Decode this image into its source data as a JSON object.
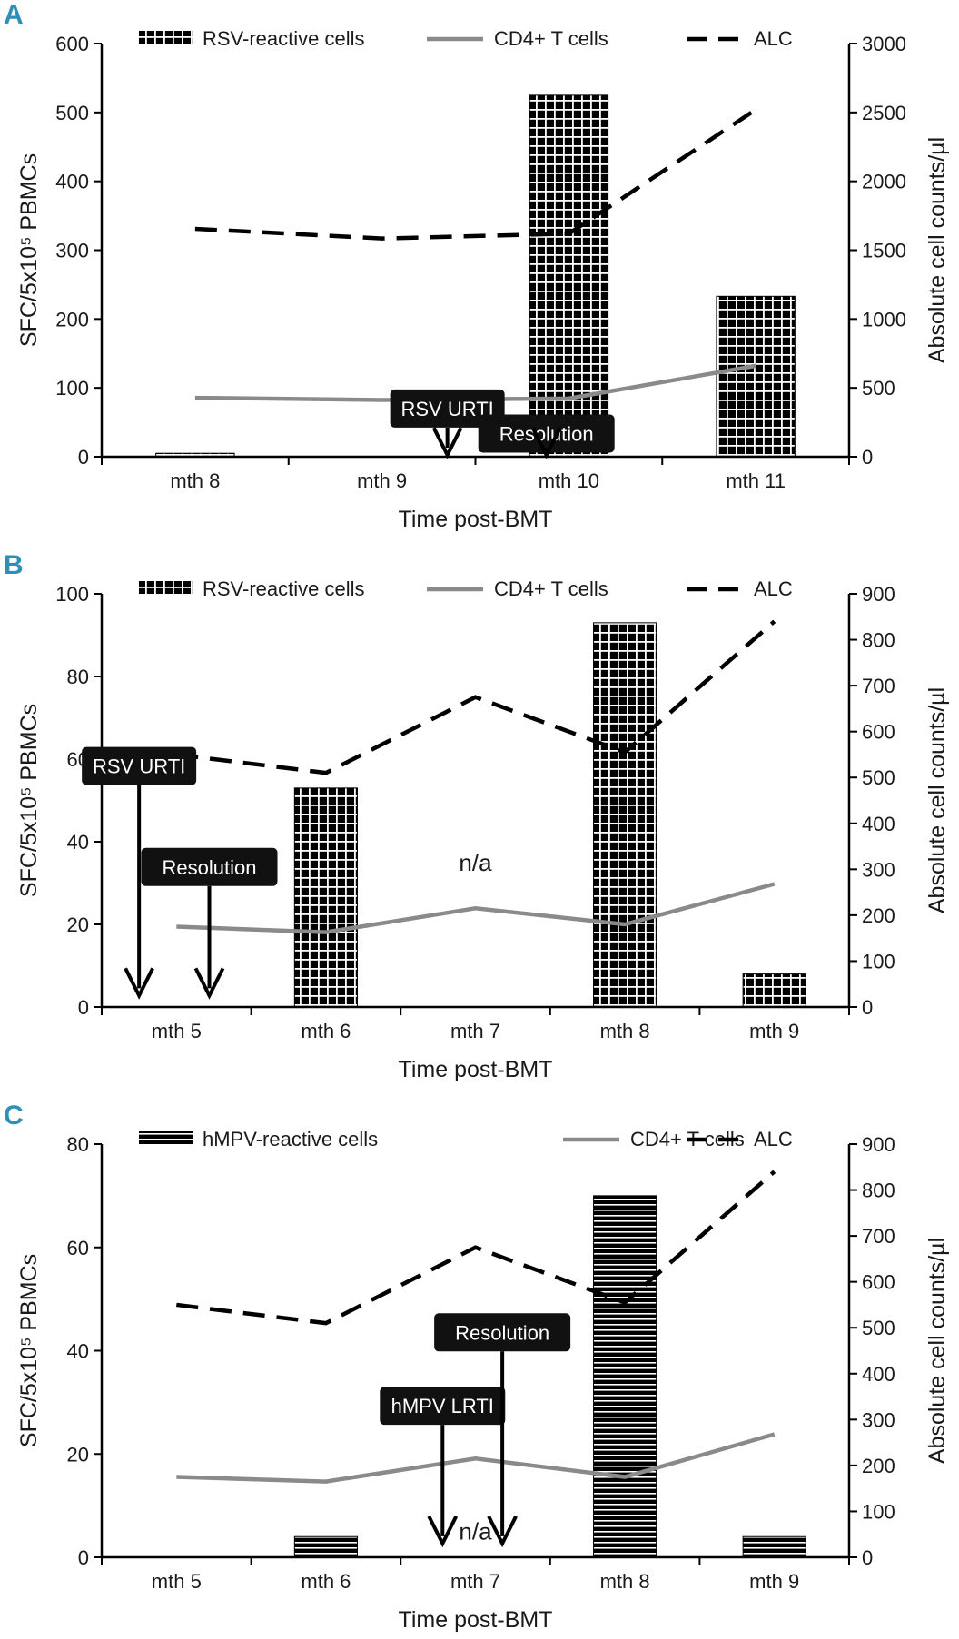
{
  "figure": {
    "panels": [
      "A",
      "B",
      "C"
    ]
  },
  "chart_data": [
    {
      "panel": "A",
      "type": "bar",
      "xlabel": "Time post-BMT",
      "ylabel": "SFC/5x10⁵ PBMCs",
      "y2label": "Absolute cell counts/µl",
      "categories": [
        "mth 8",
        "mth 9",
        "mth 10",
        "mth 11"
      ],
      "ylim": [
        0,
        600
      ],
      "yticks": [
        0,
        100,
        200,
        300,
        400,
        500,
        600
      ],
      "y2lim": [
        0,
        3000
      ],
      "y2ticks": [
        0,
        500,
        1000,
        1500,
        2000,
        2500,
        3000
      ],
      "bars": {
        "name": "RSV-reactive cells",
        "pattern": "grid",
        "values": [
          5,
          null,
          525,
          233
        ]
      },
      "series": [
        {
          "name": "CD4+ T cells",
          "style": "solid-gray",
          "axis": "right",
          "values": [
            428,
            412,
            423,
            660
          ]
        },
        {
          "name": "ALC",
          "style": "dashed-black",
          "axis": "right",
          "values": [
            1655,
            1585,
            1620,
            2520
          ]
        }
      ],
      "annotations": [
        {
          "label": "RSV URTI",
          "x": 1.35,
          "box_y": 350,
          "tip_y": 12
        },
        {
          "label": "Resolution",
          "x": 1.88,
          "box_y": 168,
          "tip_y": 12
        }
      ],
      "na_labels": []
    },
    {
      "panel": "B",
      "type": "bar",
      "xlabel": "Time post-BMT",
      "ylabel": "SFC/5x10⁵ PBMCs",
      "y2label": "Absolute cell counts/µl",
      "categories": [
        "mth 5",
        "mth 6",
        "mth 7",
        "mth 8",
        "mth 9"
      ],
      "ylim": [
        0,
        100
      ],
      "yticks": [
        0,
        20,
        40,
        60,
        80,
        100
      ],
      "y2lim": [
        0,
        900
      ],
      "y2ticks": [
        0,
        100,
        200,
        300,
        400,
        500,
        600,
        700,
        800,
        900
      ],
      "bars": {
        "name": "RSV-reactive cells",
        "pattern": "grid",
        "values": [
          null,
          53,
          null,
          93,
          8
        ]
      },
      "series": [
        {
          "name": "CD4+ T cells",
          "style": "solid-gray",
          "axis": "right",
          "values": [
            175,
            163,
            215,
            180,
            268
          ]
        },
        {
          "name": "ALC",
          "style": "dashed-black",
          "axis": "right",
          "values": [
            550,
            510,
            675,
            555,
            840
          ]
        }
      ],
      "annotations": [
        {
          "label": "RSV URTI",
          "x": -0.25,
          "box_y": 525,
          "tip_y": 25
        },
        {
          "label": "Resolution",
          "x": 0.22,
          "box_y": 305,
          "tip_y": 25
        }
      ],
      "na_labels": [
        {
          "label": "n/a",
          "x": 2,
          "y": 35
        }
      ]
    },
    {
      "panel": "C",
      "type": "bar",
      "xlabel": "Time post-BMT",
      "ylabel": "SFC/5x10⁵ PBMCs",
      "y2label": "Absolute cell counts/µl",
      "categories": [
        "mth 5",
        "mth 6",
        "mth 7",
        "mth 8",
        "mth 9"
      ],
      "ylim": [
        0,
        80
      ],
      "yticks": [
        0,
        20,
        40,
        60,
        80
      ],
      "y2lim": [
        0,
        900
      ],
      "y2ticks": [
        0,
        100,
        200,
        300,
        400,
        500,
        600,
        700,
        800,
        900
      ],
      "bars": {
        "name": "hMPV-reactive cells",
        "pattern": "horizontal",
        "values": [
          null,
          4,
          null,
          70,
          4
        ]
      },
      "series": [
        {
          "name": "CD4+ T cells",
          "style": "solid-gray",
          "axis": "right",
          "values": [
            175,
            165,
            215,
            175,
            268
          ]
        },
        {
          "name": "ALC",
          "style": "dashed-black",
          "axis": "right",
          "values": [
            550,
            510,
            675,
            555,
            840
          ]
        }
      ],
      "annotations": [
        {
          "label": "hMPV LRTI",
          "x": 1.78,
          "box_y": 330,
          "tip_y": 30
        },
        {
          "label": "Resolution",
          "x": 2.18,
          "box_y": 490,
          "tip_y": 30
        }
      ],
      "na_labels": [
        {
          "label": "n/a",
          "x": 2,
          "y": 5
        }
      ]
    }
  ]
}
